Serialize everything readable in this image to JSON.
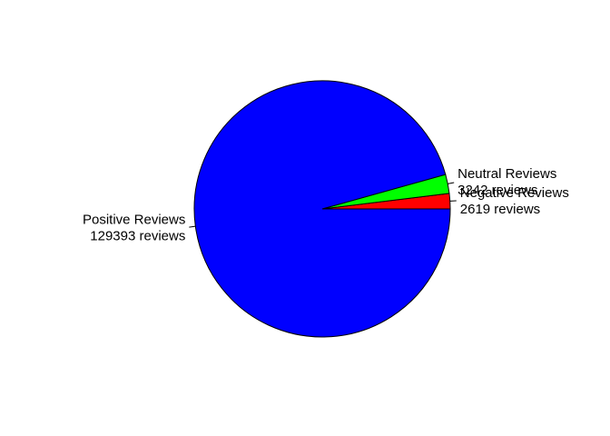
{
  "chart_data": {
    "type": "pie",
    "title": "",
    "slices": [
      {
        "name": "Negative Reviews",
        "value": 2619,
        "label": "Negative Reviews",
        "sublabel": "2619 reviews",
        "color": "#ff0000"
      },
      {
        "name": "Neutral Reviews",
        "value": 3242,
        "label": "Neutral Reviews",
        "sublabel": "3242 reviews",
        "color": "#00ff00"
      },
      {
        "name": "Positive Reviews",
        "value": 129393,
        "label": "Positive Reviews",
        "sublabel": "129393 reviews",
        "color": "#0000ff"
      }
    ],
    "start_angle": "0 degrees (3 o'clock)",
    "direction": "counterclockwise",
    "legend": "none"
  }
}
